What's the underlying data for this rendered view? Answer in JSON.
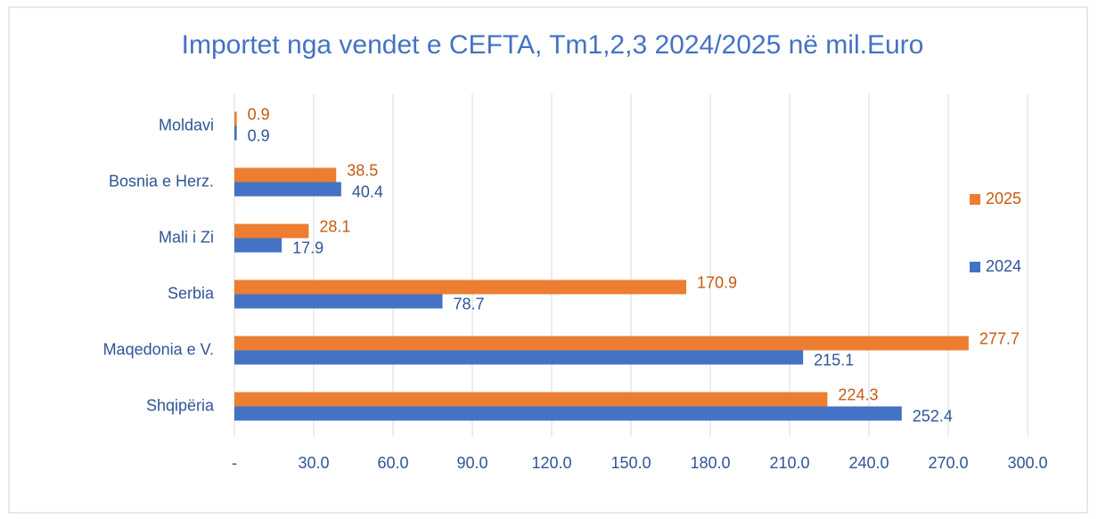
{
  "chart_data": {
    "type": "bar",
    "orientation": "horizontal",
    "title": "Importet nga vendet e CEFTA, Tm1,2,3 2024/2025  në mil.Euro",
    "categories": [
      "Moldavi",
      "Bosnia e Herz.",
      "Mali i Zi",
      "Serbia",
      "Maqedonia e V.",
      "Shqipëria"
    ],
    "series": [
      {
        "name": "2025",
        "color": "#ed7d31",
        "values": [
          0.9,
          38.5,
          28.1,
          170.9,
          277.7,
          224.3
        ]
      },
      {
        "name": "2024",
        "color": "#4472c4",
        "values": [
          0.9,
          40.4,
          17.9,
          78.7,
          215.1,
          252.4
        ]
      }
    ],
    "xlim": [
      0,
      300
    ],
    "xticks": [
      {
        "value": 0,
        "label": "-"
      },
      {
        "value": 30,
        "label": "30.0"
      },
      {
        "value": 60,
        "label": "60.0"
      },
      {
        "value": 90,
        "label": "90.0"
      },
      {
        "value": 120,
        "label": "120.0"
      },
      {
        "value": 150,
        "label": "150.0"
      },
      {
        "value": 180,
        "label": "180.0"
      },
      {
        "value": 210,
        "label": "210.0"
      },
      {
        "value": 240,
        "label": "240.0"
      },
      {
        "value": 270,
        "label": "270.0"
      },
      {
        "value": 300,
        "label": "300.0"
      }
    ],
    "grid": true,
    "legend": "right"
  }
}
